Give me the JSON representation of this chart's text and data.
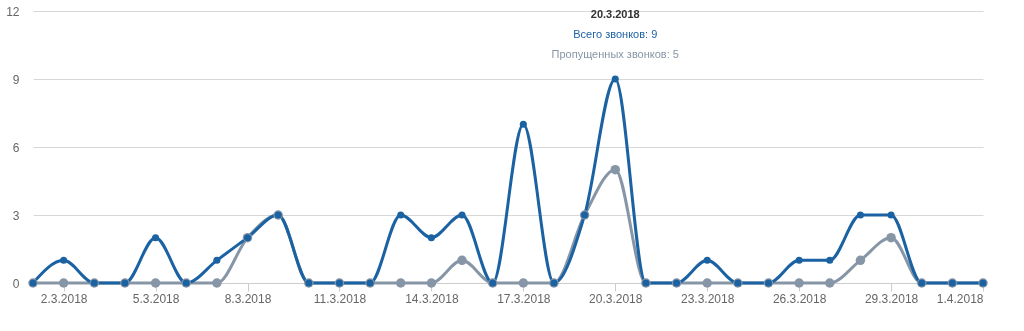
{
  "chart_data": {
    "type": "line",
    "x": [
      "2018-03-01",
      "2018-03-02",
      "2018-03-03",
      "2018-03-04",
      "2018-03-05",
      "2018-03-06",
      "2018-03-07",
      "2018-03-08",
      "2018-03-09",
      "2018-03-10",
      "2018-03-11",
      "2018-03-12",
      "2018-03-13",
      "2018-03-14",
      "2018-03-15",
      "2018-03-16",
      "2018-03-17",
      "2018-03-18",
      "2018-03-19",
      "2018-03-20",
      "2018-03-21",
      "2018-03-22",
      "2018-03-23",
      "2018-03-24",
      "2018-03-25",
      "2018-03-26",
      "2018-03-27",
      "2018-03-28",
      "2018-03-29",
      "2018-03-30",
      "2018-03-31",
      "2018-04-01"
    ],
    "series": [
      {
        "color": "#1b62a3",
        "values": [
          0,
          1,
          0,
          0,
          2,
          0,
          1,
          2,
          3,
          0,
          0,
          0,
          3,
          2,
          3,
          0,
          7,
          0,
          3,
          9,
          0,
          0,
          1,
          0,
          0,
          1,
          1,
          3,
          3,
          0,
          0,
          0
        ]
      },
      {
        "color": "#8796a6",
        "values": [
          0,
          0,
          0,
          0,
          0,
          0,
          0,
          2,
          3,
          0,
          0,
          0,
          0,
          0,
          1,
          0,
          0,
          0,
          3,
          5,
          0,
          0,
          0,
          0,
          0,
          0,
          0,
          1,
          2,
          0,
          0,
          0
        ]
      }
    ],
    "xlim": [
      "2018-03-01",
      "2018-04-01"
    ],
    "xticks": [
      {
        "value": "2018-03-02",
        "label": "2.3.2018"
      },
      {
        "value": "2018-03-05",
        "label": "5.3.2018"
      },
      {
        "value": "2018-03-08",
        "label": "8.3.2018"
      },
      {
        "value": "2018-03-11",
        "label": "11.3.2018"
      },
      {
        "value": "2018-03-14",
        "label": "14.3.2018"
      },
      {
        "value": "2018-03-17",
        "label": "17.3.2018"
      },
      {
        "value": "2018-03-20",
        "label": "20.3.2018"
      },
      {
        "value": "2018-03-23",
        "label": "23.3.2018"
      },
      {
        "value": "2018-03-26",
        "label": "26.3.2018"
      },
      {
        "value": "2018-03-29",
        "label": "29.3.2018"
      },
      {
        "value": "2018-04-01",
        "label": "1.4.2018"
      }
    ],
    "ylim": [
      0,
      12
    ],
    "yticks": [
      0,
      3,
      6,
      9,
      12
    ],
    "grid": "y",
    "marker": "circle",
    "line_style": "solid",
    "annotations": [
      "20.3.2018",
      "Всего звонков: 9",
      "Пропущенных звонков: 5"
    ]
  }
}
